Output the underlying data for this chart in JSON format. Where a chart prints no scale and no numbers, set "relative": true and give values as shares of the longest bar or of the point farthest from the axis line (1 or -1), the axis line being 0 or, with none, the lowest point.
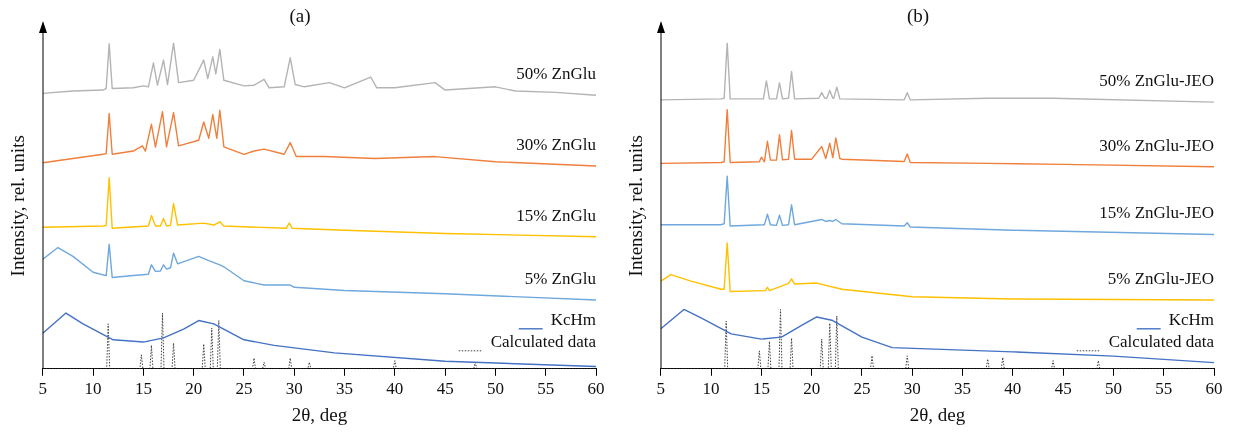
{
  "chart_data": [
    {
      "type": "line",
      "title": "(a)",
      "xlabel": "2θ, deg",
      "ylabel": "Intensity, rel. units",
      "relative": true,
      "xlim": [
        5,
        60
      ],
      "xticks": [
        5,
        10,
        15,
        20,
        25,
        30,
        35,
        40,
        45,
        50,
        55,
        60
      ],
      "marker": "none",
      "legend": "bottom right",
      "annotations": [
        "50% ZnGlu",
        "30% ZnGlu",
        "15% ZnGlu",
        "5% ZnGlu"
      ],
      "series": [
        {
          "color": "#b4b4b4",
          "x": [
            5,
            8,
            11,
            11.3,
            11.6,
            11.9,
            14,
            15,
            15.5,
            16,
            16.4,
            17,
            17.4,
            18,
            18.5,
            20,
            21,
            21.4,
            21.9,
            22.2,
            22.6,
            23,
            25,
            26,
            27,
            27.5,
            29,
            29.6,
            30.1,
            31,
            33.5,
            35,
            37.6,
            38.2,
            40,
            44,
            45,
            50,
            52,
            56,
            60
          ],
          "values": [
            0.845,
            0.852,
            0.855,
            0.86,
            0.997,
            0.86,
            0.862,
            0.868,
            0.865,
            0.938,
            0.87,
            0.947,
            0.872,
            1,
            0.878,
            0.885,
            0.947,
            0.89,
            0.957,
            0.905,
            0.98,
            0.885,
            0.868,
            0.87,
            0.888,
            0.862,
            0.865,
            0.954,
            0.872,
            0.865,
            0.878,
            0.862,
            0.895,
            0.862,
            0.862,
            0.878,
            0.855,
            0.865,
            0.852,
            0.848,
            0.839
          ]
        },
        {
          "color": "#f07f3c",
          "x": [
            5,
            8,
            11,
            11.3,
            11.6,
            11.9,
            14,
            14.9,
            15.2,
            15.8,
            16.2,
            16.9,
            17.3,
            18,
            18.5,
            20.5,
            21,
            21.5,
            21.9,
            22.3,
            22.6,
            23,
            25,
            26,
            27,
            29,
            29.6,
            30.2,
            33,
            38,
            44,
            50,
            60
          ],
          "values": [
            0.632,
            0.645,
            0.658,
            0.66,
            0.783,
            0.658,
            0.668,
            0.684,
            0.668,
            0.75,
            0.68,
            0.789,
            0.681,
            0.786,
            0.684,
            0.701,
            0.757,
            0.707,
            0.78,
            0.707,
            0.793,
            0.681,
            0.658,
            0.668,
            0.674,
            0.658,
            0.694,
            0.651,
            0.651,
            0.645,
            0.651,
            0.635,
            0.622
          ]
        },
        {
          "color": "#ffc000",
          "x": [
            5,
            11,
            11.3,
            11.6,
            11.9,
            15.5,
            15.8,
            16.2,
            16.7,
            17,
            17.3,
            17.7,
            18,
            18.4,
            21,
            22,
            22.6,
            23,
            29.2,
            29.5,
            29.8,
            35,
            45,
            60
          ],
          "values": [
            0.434,
            0.438,
            0.44,
            0.586,
            0.431,
            0.438,
            0.47,
            0.438,
            0.438,
            0.461,
            0.438,
            0.44,
            0.507,
            0.441,
            0.447,
            0.441,
            0.451,
            0.438,
            0.431,
            0.447,
            0.431,
            0.425,
            0.415,
            0.405
          ]
        },
        {
          "color": "#6fa8dc",
          "x": [
            5,
            6.5,
            8,
            10,
            11.3,
            11.6,
            11.9,
            14,
            15.5,
            15.8,
            16.2,
            16.7,
            17,
            17.3,
            17.7,
            18,
            18.4,
            20.5,
            21.5,
            22.6,
            23,
            25,
            27,
            29.6,
            30,
            35,
            45,
            60
          ],
          "values": [
            0.336,
            0.372,
            0.345,
            0.296,
            0.286,
            0.382,
            0.28,
            0.286,
            0.29,
            0.319,
            0.299,
            0.3,
            0.319,
            0.306,
            0.31,
            0.355,
            0.322,
            0.345,
            0.332,
            0.319,
            0.313,
            0.27,
            0.257,
            0.257,
            0.25,
            0.24,
            0.23,
            0.211
          ]
        },
        {
          "name": "KcHm",
          "color": "#4472c4",
          "x": [
            5,
            7.3,
            9,
            12,
            15,
            17,
            19,
            20.5,
            22,
            25,
            28,
            34,
            45,
            60
          ],
          "values": [
            0.109,
            0.171,
            0.138,
            0.089,
            0.082,
            0.095,
            0.122,
            0.148,
            0.138,
            0.089,
            0.072,
            0.049,
            0.023,
            0.007
          ]
        },
        {
          "name": "Calculated data",
          "color": "#404040",
          "line_style": "dotted",
          "x": [
            5,
            11.35,
            11.5,
            11.65,
            14.65,
            14.8,
            14.95,
            15.65,
            15.8,
            15.95,
            16.75,
            16.9,
            17.05,
            17.85,
            18,
            18.15,
            20.85,
            21,
            21.15,
            21.65,
            21.8,
            21.95,
            22.35,
            22.5,
            22.65,
            25.85,
            26,
            26.15,
            26.85,
            27,
            27.15,
            29.45,
            29.6,
            29.75,
            31.35,
            31.5,
            31.65,
            39.85,
            40,
            40.15,
            47.85,
            48,
            48.15,
            60
          ],
          "values": [
            0,
            0,
            0.138,
            0,
            0,
            0.043,
            0,
            0,
            0.072,
            0,
            0,
            0.171,
            0,
            0,
            0.079,
            0,
            0,
            0.076,
            0,
            0,
            0.125,
            0,
            0,
            0.148,
            0,
            0,
            0.033,
            0,
            0,
            0.02,
            0,
            0,
            0.033,
            0,
            0,
            0.02,
            0,
            0,
            0.025,
            0,
            0,
            0.02,
            0,
            0
          ]
        }
      ]
    },
    {
      "type": "line",
      "title": "(b)",
      "xlabel": "2θ, deg",
      "ylabel": "Intensity, rel. units",
      "relative": true,
      "xlim": [
        5,
        60
      ],
      "xticks": [
        5,
        10,
        15,
        20,
        25,
        30,
        35,
        40,
        45,
        50,
        55,
        60
      ],
      "marker": "none",
      "legend": "bottom right",
      "annotations": [
        "50% ZnGlu-JEO",
        "30% ZnGlu-JEO",
        "15% ZnGlu-JEO",
        "5% ZnGlu-JEO"
      ],
      "series": [
        {
          "color": "#b4b4b4",
          "x": [
            5,
            11,
            11.3,
            11.6,
            11.9,
            15.2,
            15.5,
            15.8,
            16.5,
            16.8,
            17.1,
            17.7,
            18,
            18.3,
            20.7,
            21,
            21.3,
            21.5,
            21.8,
            22.1,
            22.2,
            22.5,
            22.8,
            29.2,
            29.5,
            29.8,
            37.5,
            44,
            60
          ],
          "values": [
            0.825,
            0.828,
            0.83,
            1,
            0.828,
            0.828,
            0.883,
            0.828,
            0.828,
            0.877,
            0.828,
            0.83,
            0.912,
            0.828,
            0.83,
            0.847,
            0.83,
            0.83,
            0.854,
            0.83,
            0.83,
            0.864,
            0.828,
            0.825,
            0.847,
            0.825,
            0.83,
            0.83,
            0.818
          ]
        },
        {
          "color": "#f07f3c",
          "x": [
            5,
            11,
            11.3,
            11.6,
            11.9,
            14.8,
            15,
            15.3,
            15.6,
            15.9,
            16.5,
            16.8,
            17.1,
            17.7,
            18,
            18.3,
            20,
            21,
            21.4,
            21.8,
            22.1,
            22.4,
            22.8,
            23,
            29.2,
            29.5,
            29.8,
            37.5,
            45,
            60
          ],
          "values": [
            0.63,
            0.633,
            0.635,
            0.795,
            0.633,
            0.635,
            0.649,
            0.635,
            0.698,
            0.64,
            0.64,
            0.718,
            0.641,
            0.643,
            0.731,
            0.643,
            0.643,
            0.682,
            0.645,
            0.692,
            0.648,
            0.708,
            0.645,
            0.643,
            0.636,
            0.659,
            0.633,
            0.63,
            0.627,
            0.62
          ]
        },
        {
          "color": "#6fa8dc",
          "x": [
            5,
            11,
            11.3,
            11.6,
            11.9,
            15.3,
            15.6,
            15.9,
            16.5,
            16.8,
            17.1,
            17.7,
            18,
            18.3,
            20.5,
            21,
            21.4,
            21.8,
            22.1,
            22.4,
            23,
            29.2,
            29.5,
            29.8,
            40,
            60
          ],
          "values": [
            0.442,
            0.442,
            0.445,
            0.591,
            0.438,
            0.442,
            0.474,
            0.442,
            0.44,
            0.471,
            0.44,
            0.442,
            0.503,
            0.442,
            0.455,
            0.458,
            0.452,
            0.455,
            0.452,
            0.458,
            0.445,
            0.438,
            0.448,
            0.435,
            0.425,
            0.412
          ]
        },
        {
          "color": "#ffc000",
          "x": [
            5,
            6,
            8,
            11,
            11.3,
            11.6,
            11.9,
            15.4,
            15.6,
            15.8,
            17.7,
            18,
            18.3,
            20.5,
            23,
            30,
            40,
            60
          ],
          "values": [
            0.269,
            0.289,
            0.269,
            0.244,
            0.244,
            0.386,
            0.237,
            0.24,
            0.25,
            0.24,
            0.262,
            0.276,
            0.26,
            0.263,
            0.244,
            0.221,
            0.214,
            0.211
          ]
        },
        {
          "name": "KcHm",
          "color": "#4472c4",
          "x": [
            5,
            7.3,
            9,
            12,
            15,
            17,
            19,
            20.5,
            22,
            25,
            28,
            40,
            50,
            60
          ],
          "values": [
            0.123,
            0.182,
            0.156,
            0.107,
            0.091,
            0.097,
            0.133,
            0.159,
            0.149,
            0.097,
            0.065,
            0.052,
            0.039,
            0.019
          ]
        },
        {
          "name": "Calculated data",
          "color": "#404040",
          "line_style": "dotted",
          "x": [
            5,
            11.35,
            11.5,
            11.65,
            14.65,
            14.8,
            14.95,
            15.65,
            15.8,
            15.95,
            16.75,
            16.9,
            17.05,
            17.85,
            18,
            18.15,
            20.85,
            21,
            21.15,
            21.65,
            21.8,
            21.95,
            22.35,
            22.5,
            22.65,
            25.85,
            26,
            26.15,
            29.35,
            29.5,
            29.65,
            37.35,
            37.5,
            37.65,
            38.85,
            39,
            39.15,
            43.85,
            44,
            44.15,
            48.35,
            48.5,
            48.65,
            60
          ],
          "values": [
            0,
            0,
            0.146,
            0,
            0,
            0.055,
            0,
            0,
            0.084,
            0,
            0,
            0.182,
            0,
            0,
            0.094,
            0,
            0,
            0.091,
            0,
            0,
            0.14,
            0,
            0,
            0.162,
            0,
            0,
            0.04,
            0,
            0,
            0.04,
            0,
            0,
            0.03,
            0,
            0,
            0.035,
            0,
            0,
            0.025,
            0,
            0,
            0.025,
            0,
            0
          ]
        }
      ]
    }
  ]
}
